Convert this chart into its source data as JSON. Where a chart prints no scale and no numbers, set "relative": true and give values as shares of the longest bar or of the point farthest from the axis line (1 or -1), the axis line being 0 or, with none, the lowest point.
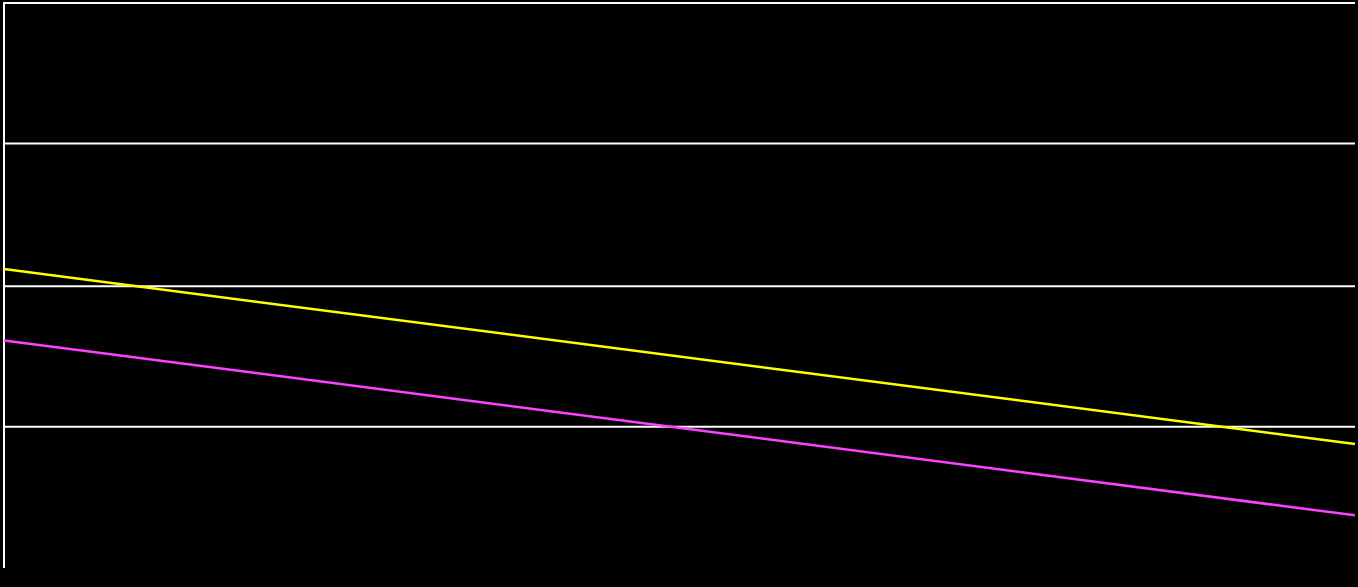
{
  "chart_data": {
    "type": "line",
    "relative": true,
    "categories": [
      null,
      null
    ],
    "series": [
      {
        "color": "#ffff00",
        "values": [
          1,
          0.29
        ]
      },
      {
        "color": "#ff40ff",
        "values": [
          0.71,
          0
        ]
      }
    ],
    "ref_lines": [
      {
        "axis": "y",
        "value": 0.36,
        "color": "#ffffff"
      },
      {
        "axis": "y",
        "value": 0.93,
        "color": "#ffffff"
      },
      {
        "axis": "y",
        "value": 1.51,
        "color": "#ffffff"
      },
      {
        "axis": "y",
        "value": 2.08,
        "color": "#ffffff"
      }
    ],
    "legend": false,
    "marker": "none",
    "line_style": "solid"
  }
}
